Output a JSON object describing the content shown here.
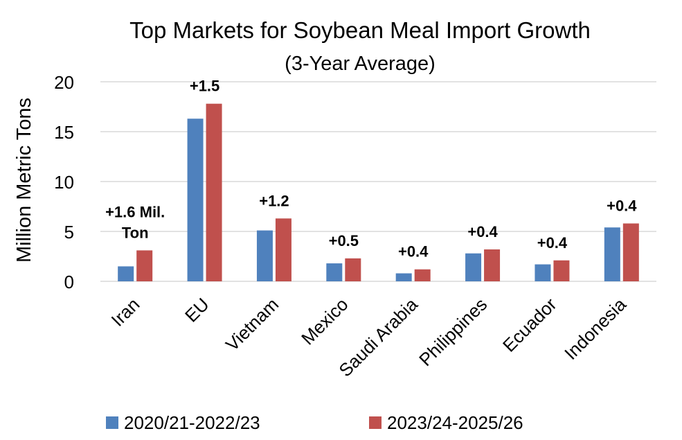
{
  "chart_data": {
    "type": "bar",
    "title": "Top Markets for Soybean Meal Import Growth",
    "subtitle": "(3-Year Average)",
    "ylabel": "Million Metric Tons",
    "xlabel": "",
    "ylim": [
      0,
      20
    ],
    "yticks": [
      0,
      5,
      10,
      15,
      20
    ],
    "grid": true,
    "legend": "bottom",
    "categories": [
      "Iran",
      "EU",
      "Vietnam",
      "Mexico",
      "Saudi Arabia",
      "Philippines",
      "Ecuador",
      "Indonesia"
    ],
    "series": [
      {
        "name": "2020/21-2022/23",
        "color": "#4f81bd",
        "values": [
          1.5,
          16.3,
          5.1,
          1.8,
          0.8,
          2.8,
          1.7,
          5.4
        ]
      },
      {
        "name": "2023/24-2025/26",
        "color": "#c0504d",
        "values": [
          3.1,
          17.8,
          6.3,
          2.3,
          1.2,
          3.2,
          2.1,
          5.8
        ]
      }
    ],
    "annotations": [
      {
        "category": "Iran",
        "lines": [
          "+1.6 Mil.",
          "Ton"
        ]
      },
      {
        "category": "EU",
        "lines": [
          "+1.5"
        ]
      },
      {
        "category": "Vietnam",
        "lines": [
          "+1.2"
        ]
      },
      {
        "category": "Mexico",
        "lines": [
          "+0.5"
        ]
      },
      {
        "category": "Saudi Arabia",
        "lines": [
          "+0.4"
        ]
      },
      {
        "category": "Philippines",
        "lines": [
          "+0.4"
        ]
      },
      {
        "category": "Ecuador",
        "lines": [
          "+0.4"
        ]
      },
      {
        "category": "Indonesia",
        "lines": [
          "+0.4"
        ]
      }
    ]
  }
}
